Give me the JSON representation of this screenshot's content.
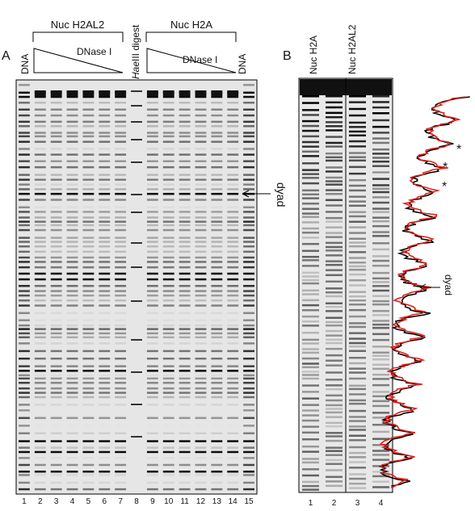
{
  "panel_a": {
    "label": "A",
    "dna_left": "DNA",
    "group1": "Nuc H2AL2",
    "dnase1": "DNase I",
    "hae_italic": "Hae",
    "hae_rest": "III digest",
    "group2": "Nuc H2A",
    "dnase2": "DNase I",
    "dna_right": "DNA",
    "dyad": "dyad",
    "lanes": [
      "1",
      "2",
      "3",
      "4",
      "5",
      "6",
      "7",
      "8",
      "9",
      "10",
      "11",
      "12",
      "13",
      "14",
      "15"
    ]
  },
  "panel_b": {
    "label": "B",
    "lane_title1": "Nuc H2A",
    "lane_title2": "Nuc H2AL2",
    "stars": [
      "*",
      "*",
      "*"
    ],
    "dyad": "dyad",
    "lanes": [
      "1",
      "2",
      "3",
      "4"
    ]
  }
}
